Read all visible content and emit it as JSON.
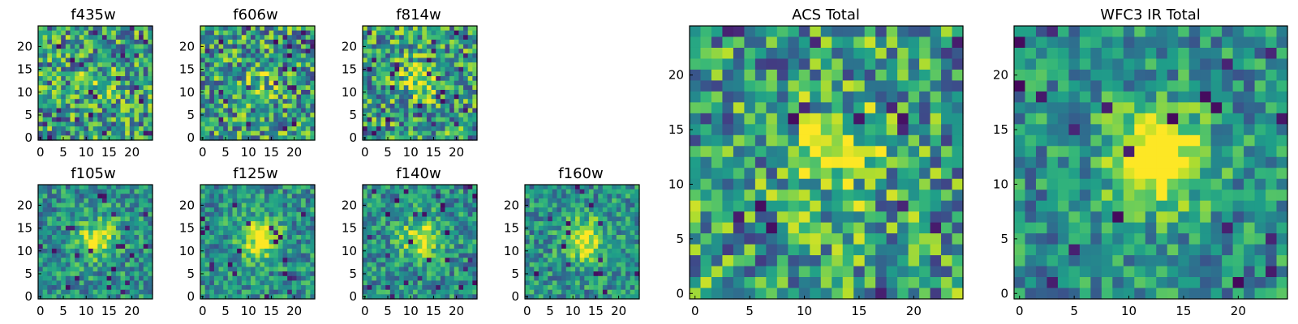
{
  "chart_data": [
    {
      "type": "heatmap",
      "title": "f435w",
      "x_ticks": [
        "0",
        "5",
        "10",
        "15",
        "20"
      ],
      "y_ticks": [
        "0",
        "5",
        "10",
        "15",
        "20"
      ],
      "xlim": [
        0,
        24
      ],
      "ylim": [
        0,
        24
      ],
      "colormap": "viridis",
      "blob": 0.15
    },
    {
      "type": "heatmap",
      "title": "f606w",
      "x_ticks": [
        "0",
        "5",
        "10",
        "15",
        "20"
      ],
      "y_ticks": [
        "0",
        "5",
        "10",
        "15",
        "20"
      ],
      "xlim": [
        0,
        24
      ],
      "ylim": [
        0,
        24
      ],
      "colormap": "viridis",
      "blob": 0.15
    },
    {
      "type": "heatmap",
      "title": "f814w",
      "x_ticks": [
        "0",
        "5",
        "10",
        "15",
        "20"
      ],
      "y_ticks": [
        "0",
        "5",
        "10",
        "15",
        "20"
      ],
      "xlim": [
        0,
        24
      ],
      "ylim": [
        0,
        24
      ],
      "colormap": "viridis",
      "blob": 0.35
    },
    {
      "type": "heatmap",
      "title": "f105w",
      "x_ticks": [
        "0",
        "5",
        "10",
        "15",
        "20"
      ],
      "y_ticks": [
        "0",
        "5",
        "10",
        "15",
        "20"
      ],
      "xlim": [
        0,
        24
      ],
      "ylim": [
        0,
        24
      ],
      "colormap": "viridis",
      "blob": 0.45
    },
    {
      "type": "heatmap",
      "title": "f125w",
      "x_ticks": [
        "0",
        "5",
        "10",
        "15",
        "20"
      ],
      "y_ticks": [
        "0",
        "5",
        "10",
        "15",
        "20"
      ],
      "xlim": [
        0,
        24
      ],
      "ylim": [
        0,
        24
      ],
      "colormap": "viridis",
      "blob": 0.5
    },
    {
      "type": "heatmap",
      "title": "f140w",
      "x_ticks": [
        "0",
        "5",
        "10",
        "15",
        "20"
      ],
      "y_ticks": [
        "0",
        "5",
        "10",
        "15",
        "20"
      ],
      "xlim": [
        0,
        24
      ],
      "ylim": [
        0,
        24
      ],
      "colormap": "viridis",
      "blob": 0.5
    },
    {
      "type": "heatmap",
      "title": "f160w",
      "x_ticks": [
        "0",
        "5",
        "10",
        "15",
        "20"
      ],
      "y_ticks": [
        "0",
        "5",
        "10",
        "15",
        "20"
      ],
      "xlim": [
        0,
        24
      ],
      "ylim": [
        0,
        24
      ],
      "colormap": "viridis",
      "blob": 0.55
    },
    {
      "type": "heatmap",
      "title": "ACS Total",
      "x_ticks": [
        "0",
        "5",
        "10",
        "15",
        "20"
      ],
      "y_ticks": [
        "0",
        "5",
        "10",
        "15",
        "20"
      ],
      "xlim": [
        0,
        24
      ],
      "ylim": [
        0,
        24
      ],
      "colormap": "viridis",
      "blob": 0.35
    },
    {
      "type": "heatmap",
      "title": "WFC3 IR Total",
      "x_ticks": [
        "0",
        "5",
        "10",
        "15",
        "20"
      ],
      "y_ticks": [
        "0",
        "5",
        "10",
        "15",
        "20"
      ],
      "xlim": [
        0,
        24
      ],
      "ylim": [
        0,
        24
      ],
      "colormap": "viridis",
      "blob": 0.75
    }
  ]
}
